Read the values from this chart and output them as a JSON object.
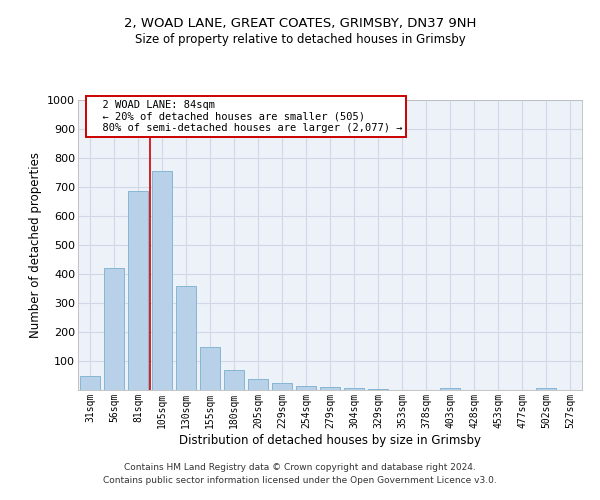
{
  "title_line1": "2, WOAD LANE, GREAT COATES, GRIMSBY, DN37 9NH",
  "title_line2": "Size of property relative to detached houses in Grimsby",
  "xlabel": "Distribution of detached houses by size in Grimsby",
  "ylabel": "Number of detached properties",
  "categories": [
    "31sqm",
    "56sqm",
    "81sqm",
    "105sqm",
    "130sqm",
    "155sqm",
    "180sqm",
    "205sqm",
    "229sqm",
    "254sqm",
    "279sqm",
    "304sqm",
    "329sqm",
    "353sqm",
    "378sqm",
    "403sqm",
    "428sqm",
    "453sqm",
    "477sqm",
    "502sqm",
    "527sqm"
  ],
  "values": [
    50,
    420,
    685,
    755,
    360,
    150,
    70,
    38,
    25,
    15,
    10,
    8,
    5,
    0,
    0,
    8,
    0,
    0,
    0,
    8,
    0
  ],
  "bar_color": "#b8d0e8",
  "bar_edge_color": "#7aaed0",
  "bar_width": 0.85,
  "vline_x": 2.5,
  "vline_color": "#cc0000",
  "annotation_text": "  2 WOAD LANE: 84sqm\n  ← 20% of detached houses are smaller (505)\n  80% of semi-detached houses are larger (2,077) →",
  "annotation_box_facecolor": "#ffffff",
  "annotation_box_edgecolor": "#cc0000",
  "ylim": [
    0,
    1000
  ],
  "yticks": [
    0,
    100,
    200,
    300,
    400,
    500,
    600,
    700,
    800,
    900,
    1000
  ],
  "grid_color": "#d0d8e8",
  "plot_bg_color": "#edf2f9",
  "background_color": "#ffffff",
  "footer_line1": "Contains HM Land Registry data © Crown copyright and database right 2024.",
  "footer_line2": "Contains public sector information licensed under the Open Government Licence v3.0."
}
